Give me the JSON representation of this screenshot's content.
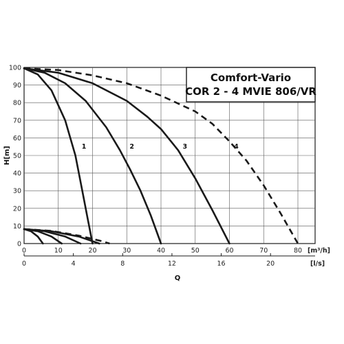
{
  "chart_data": {
    "type": "line",
    "title": "Comfort-Vario",
    "subtitle": "COR 2 - 4 MVIE 806/VR",
    "xlabel": "Q",
    "ylabel": "H[m]",
    "x_unit": "[m³/h]",
    "x2_unit": "[l/s]",
    "xlim": [
      0,
      80
    ],
    "ylim": [
      0,
      100
    ],
    "grid": true,
    "x_ticks": [
      "0",
      "10",
      "20",
      "30",
      "40",
      "50",
      "60",
      "70",
      "80"
    ],
    "x2_ticks": [
      "0",
      "4",
      "8",
      "12",
      "16",
      "20"
    ],
    "y_ticks": [
      "0",
      "10",
      "20",
      "30",
      "40",
      "50",
      "60",
      "70",
      "80",
      "90",
      "100"
    ],
    "curve_labels": [
      "1",
      "2",
      "3",
      "4"
    ],
    "series": [
      {
        "name": "1",
        "style": "solid",
        "x": [
          0,
          4,
          8,
          12,
          15,
          17,
          18.5,
          20
        ],
        "y": [
          99.5,
          96,
          87,
          70,
          50,
          30,
          15,
          0
        ]
      },
      {
        "name": "2",
        "style": "solid",
        "x": [
          0,
          6,
          12,
          18,
          24,
          28,
          31,
          34,
          37,
          40
        ],
        "y": [
          99.5,
          97,
          91,
          81,
          66,
          53,
          42,
          30,
          16,
          0
        ]
      },
      {
        "name": "3",
        "style": "solid",
        "x": [
          0,
          10,
          20,
          30,
          36,
          40,
          45,
          50,
          55,
          60
        ],
        "y": [
          99.5,
          97,
          91,
          81,
          72,
          65,
          53,
          37,
          19,
          0
        ]
      },
      {
        "name": "4",
        "style": "dashed",
        "x": [
          0,
          10,
          20,
          30,
          40,
          50,
          55,
          60,
          65,
          70,
          75,
          80
        ],
        "y": [
          99.5,
          98.5,
          95.5,
          91,
          84,
          75,
          68,
          58,
          47,
          33,
          17,
          0
        ]
      },
      {
        "name": "",
        "style": "solid",
        "x": [
          0,
          2,
          4,
          5.5
        ],
        "y": [
          8.2,
          7,
          4,
          0
        ]
      },
      {
        "name": "",
        "style": "solid",
        "x": [
          0,
          4,
          8,
          11
        ],
        "y": [
          8.2,
          7,
          4,
          0
        ]
      },
      {
        "name": "",
        "style": "solid",
        "x": [
          0,
          6,
          12,
          16.5
        ],
        "y": [
          8.2,
          7,
          4,
          0
        ]
      },
      {
        "name": "",
        "style": "solid",
        "x": [
          0,
          8,
          16,
          22
        ],
        "y": [
          8.2,
          7,
          4,
          0
        ]
      },
      {
        "name": "",
        "style": "dashed",
        "x": [
          0,
          8,
          16,
          23,
          25
        ],
        "y": [
          8.2,
          7.2,
          4.5,
          1.2,
          0
        ]
      }
    ]
  },
  "colors": {
    "curve": "#1a1a1a",
    "grid": "#555555",
    "background": "#ffffff"
  }
}
